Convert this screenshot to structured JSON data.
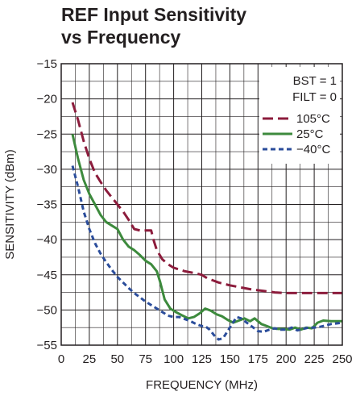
{
  "chart_data": {
    "type": "line",
    "title_lines": [
      "REF Input Sensitivity",
      "vs Frequency"
    ],
    "xlabel": "FREQUENCY (MHz)",
    "ylabel": "SENSITIVITY (dBm)",
    "xlim": [
      0,
      250
    ],
    "ylim": [
      -55,
      -15
    ],
    "x_ticks": [
      "0",
      "25",
      "50",
      "75",
      "100",
      "125",
      "150",
      "175",
      "200",
      "225",
      "250"
    ],
    "y_ticks": [
      "−15",
      "−20",
      "−25",
      "−30",
      "−35",
      "−40",
      "−45",
      "−50",
      "−55"
    ],
    "grid": true,
    "annotations": [
      "BST = 1",
      "FILT = 0"
    ],
    "legend_position": "top-right",
    "series": [
      {
        "name": "105°C",
        "color": "#8c1c3c",
        "dash": "long-dash",
        "points": [
          [
            10,
            -20.5
          ],
          [
            15,
            -23
          ],
          [
            20,
            -26
          ],
          [
            25,
            -28.5
          ],
          [
            30,
            -30.5
          ],
          [
            35,
            -31.8
          ],
          [
            40,
            -33
          ],
          [
            45,
            -34
          ],
          [
            50,
            -35
          ],
          [
            55,
            -36
          ],
          [
            60,
            -37.2
          ],
          [
            65,
            -38.5
          ],
          [
            70,
            -38.7
          ],
          [
            75,
            -38.7
          ],
          [
            80,
            -38.7
          ],
          [
            82,
            -40
          ],
          [
            85,
            -41.5
          ],
          [
            90,
            -42.8
          ],
          [
            95,
            -43.5
          ],
          [
            100,
            -44
          ],
          [
            110,
            -44.5
          ],
          [
            120,
            -44.8
          ],
          [
            125,
            -45
          ],
          [
            130,
            -45.5
          ],
          [
            140,
            -46.1
          ],
          [
            150,
            -46.5
          ],
          [
            160,
            -46.8
          ],
          [
            170,
            -47.1
          ],
          [
            180,
            -47.3
          ],
          [
            190,
            -47.5
          ],
          [
            200,
            -47.6
          ],
          [
            225,
            -47.6
          ],
          [
            250,
            -47.6
          ]
        ]
      },
      {
        "name": "25°C",
        "color": "#3d8a3d",
        "dash": "solid",
        "points": [
          [
            10,
            -25
          ],
          [
            15,
            -28.5
          ],
          [
            20,
            -31.5
          ],
          [
            25,
            -33.5
          ],
          [
            30,
            -35
          ],
          [
            35,
            -36.5
          ],
          [
            40,
            -37.5
          ],
          [
            45,
            -38
          ],
          [
            50,
            -38.5
          ],
          [
            55,
            -40
          ],
          [
            60,
            -41
          ],
          [
            65,
            -41.5
          ],
          [
            70,
            -42.2
          ],
          [
            75,
            -43
          ],
          [
            80,
            -43.5
          ],
          [
            85,
            -44.5
          ],
          [
            88,
            -46
          ],
          [
            92,
            -48.5
          ],
          [
            97,
            -49.8
          ],
          [
            102,
            -50.3
          ],
          [
            108,
            -50.8
          ],
          [
            113,
            -51.2
          ],
          [
            118,
            -51
          ],
          [
            123,
            -50.5
          ],
          [
            128,
            -49.8
          ],
          [
            133,
            -50.1
          ],
          [
            138,
            -50.6
          ],
          [
            143,
            -50.9
          ],
          [
            148,
            -51.4
          ],
          [
            153,
            -51.8
          ],
          [
            158,
            -51.5
          ],
          [
            163,
            -51.2
          ],
          [
            168,
            -51.6
          ],
          [
            172,
            -51.2
          ],
          [
            178,
            -52
          ],
          [
            183,
            -52.3
          ],
          [
            188,
            -52.6
          ],
          [
            193,
            -52.7
          ],
          [
            198,
            -52.7
          ],
          [
            203,
            -52.8
          ],
          [
            208,
            -52.5
          ],
          [
            213,
            -52.8
          ],
          [
            218,
            -52.5
          ],
          [
            223,
            -52.6
          ],
          [
            228,
            -51.8
          ],
          [
            233,
            -51.5
          ],
          [
            240,
            -51.6
          ],
          [
            250,
            -51.6
          ]
        ]
      },
      {
        "name": "−40°C",
        "color": "#2b4d9b",
        "dash": "short-dash",
        "points": [
          [
            10,
            -29.5
          ],
          [
            15,
            -32.5
          ],
          [
            20,
            -36
          ],
          [
            25,
            -38.5
          ],
          [
            30,
            -40.5
          ],
          [
            35,
            -42
          ],
          [
            40,
            -43.2
          ],
          [
            45,
            -44.3
          ],
          [
            50,
            -45.3
          ],
          [
            55,
            -46.1
          ],
          [
            60,
            -46.9
          ],
          [
            65,
            -47.6
          ],
          [
            70,
            -48.2
          ],
          [
            75,
            -48.8
          ],
          [
            80,
            -49.3
          ],
          [
            85,
            -49.8
          ],
          [
            90,
            -50.3
          ],
          [
            95,
            -50.8
          ],
          [
            100,
            -51
          ],
          [
            105,
            -51
          ],
          [
            110,
            -51.3
          ],
          [
            115,
            -51.6
          ],
          [
            120,
            -52
          ],
          [
            125,
            -52.3
          ],
          [
            128,
            -52.3
          ],
          [
            132,
            -52.8
          ],
          [
            136,
            -53.6
          ],
          [
            140,
            -54.2
          ],
          [
            144,
            -54
          ],
          [
            148,
            -53
          ],
          [
            152,
            -52
          ],
          [
            156,
            -51
          ],
          [
            160,
            -51.2
          ],
          [
            165,
            -51.8
          ],
          [
            170,
            -52.4
          ],
          [
            175,
            -53
          ],
          [
            180,
            -53.1
          ],
          [
            185,
            -52.8
          ],
          [
            190,
            -52.6
          ],
          [
            195,
            -52.8
          ],
          [
            200,
            -52.8
          ],
          [
            205,
            -52.5
          ],
          [
            210,
            -52.9
          ],
          [
            215,
            -52.7
          ],
          [
            220,
            -52.5
          ],
          [
            225,
            -52.5
          ],
          [
            230,
            -52.4
          ],
          [
            235,
            -52.2
          ],
          [
            240,
            -52
          ],
          [
            245,
            -51.9
          ],
          [
            250,
            -51.8
          ]
        ]
      }
    ]
  }
}
